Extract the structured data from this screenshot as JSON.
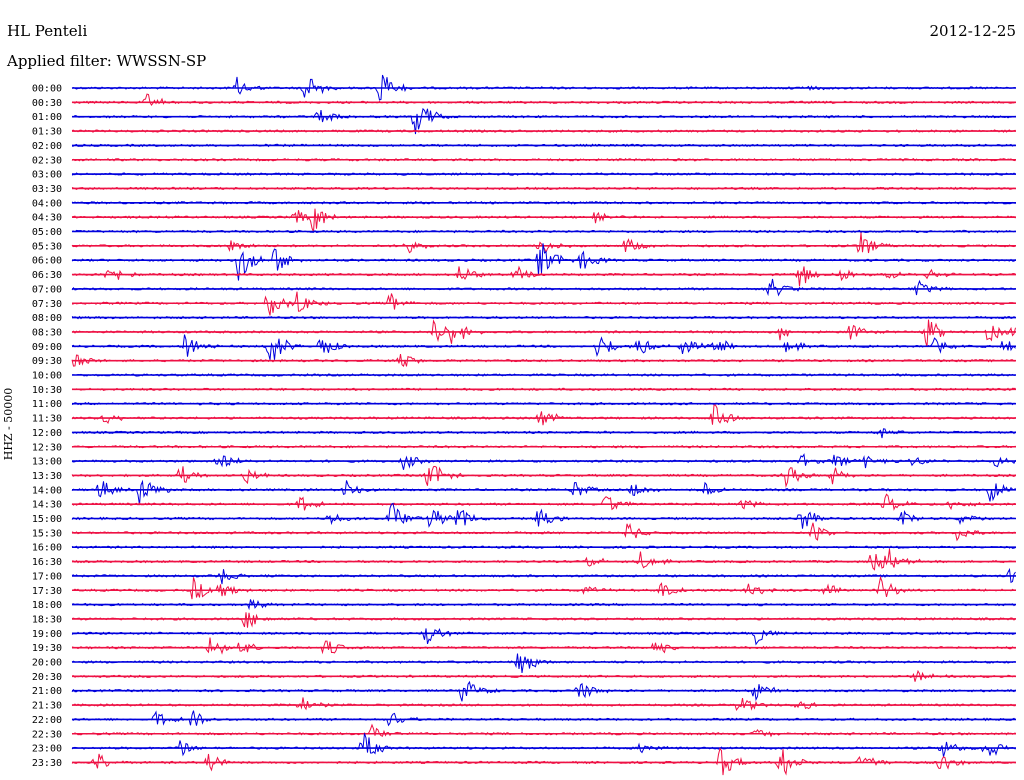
{
  "header": {
    "station": "HL Penteli",
    "date": "2012-12-25",
    "filter": "Applied filter: WWSSN-SP"
  },
  "chart_data": {
    "type": "line",
    "title": "HL Penteli",
    "subtitle": "Applied filter: WWSSN-SP",
    "date": "2012-12-25",
    "ylabel": "HHZ - 50000",
    "xlabel": "",
    "trace_colors": [
      "#0000dd",
      "#ee1144"
    ],
    "grid": false,
    "rows": [
      {
        "label": "00:00",
        "events": [
          [
            236,
            1.1
          ],
          [
            305,
            1.6
          ],
          [
            380,
            2.0
          ],
          [
            803,
            0.3
          ]
        ]
      },
      {
        "label": "00:30",
        "events": [
          [
            147,
            0.8
          ]
        ]
      },
      {
        "label": "01:00",
        "events": [
          [
            318,
            0.8
          ],
          [
            415,
            2.4
          ]
        ]
      },
      {
        "label": "01:30",
        "events": []
      },
      {
        "label": "02:00",
        "events": []
      },
      {
        "label": "02:30",
        "events": []
      },
      {
        "label": "03:00",
        "events": []
      },
      {
        "label": "03:30",
        "events": []
      },
      {
        "label": "04:00",
        "events": []
      },
      {
        "label": "04:30",
        "events": [
          [
            295,
            1.0
          ],
          [
            313,
            1.4
          ],
          [
            595,
            0.6
          ]
        ]
      },
      {
        "label": "05:00",
        "events": []
      },
      {
        "label": "05:30",
        "events": [
          [
            228,
            1.0
          ],
          [
            405,
            0.8
          ],
          [
            540,
            1.0
          ],
          [
            625,
            0.8
          ],
          [
            860,
            1.4
          ]
        ]
      },
      {
        "label": "06:00",
        "events": [
          [
            238,
            2.2
          ],
          [
            275,
            1.6
          ],
          [
            540,
            2.2
          ],
          [
            580,
            1.2
          ]
        ]
      },
      {
        "label": "06:30",
        "events": [
          [
            108,
            1.2
          ],
          [
            460,
            1.2
          ],
          [
            515,
            1.0
          ],
          [
            800,
            1.2
          ],
          [
            840,
            0.8
          ],
          [
            888,
            0.6
          ],
          [
            928,
            0.6
          ]
        ]
      },
      {
        "label": "07:00",
        "events": [
          [
            770,
            1.2
          ],
          [
            916,
            1.0
          ]
        ]
      },
      {
        "label": "07:30",
        "events": [
          [
            268,
            1.4
          ],
          [
            296,
            1.2
          ],
          [
            390,
            1.0
          ]
        ]
      },
      {
        "label": "08:00",
        "events": []
      },
      {
        "label": "08:30",
        "events": [
          [
            435,
            1.6
          ],
          [
            452,
            1.2
          ],
          [
            780,
            0.8
          ],
          [
            850,
            0.8
          ],
          [
            925,
            1.6
          ],
          [
            988,
            1.0
          ],
          [
            1014,
            0.6
          ]
        ]
      },
      {
        "label": "09:00",
        "events": [
          [
            185,
            1.4
          ],
          [
            270,
            2.0
          ],
          [
            320,
            1.2
          ],
          [
            598,
            1.4
          ],
          [
            638,
            1.0
          ],
          [
            682,
            1.0
          ],
          [
            715,
            1.0
          ],
          [
            785,
            0.8
          ],
          [
            935,
            0.8
          ],
          [
            1003,
            0.8
          ]
        ]
      },
      {
        "label": "09:30",
        "events": [
          [
            75,
            0.8
          ],
          [
            400,
            0.8
          ]
        ]
      },
      {
        "label": "10:00",
        "events": []
      },
      {
        "label": "10:30",
        "events": []
      },
      {
        "label": "11:00",
        "events": []
      },
      {
        "label": "11:30",
        "events": [
          [
            105,
            0.6
          ],
          [
            540,
            1.0
          ],
          [
            714,
            1.8
          ]
        ]
      },
      {
        "label": "12:00",
        "events": [
          [
            878,
            0.6
          ]
        ]
      },
      {
        "label": "12:30",
        "events": []
      },
      {
        "label": "13:00",
        "events": [
          [
            218,
            1.0
          ],
          [
            403,
            0.8
          ],
          [
            800,
            0.8
          ],
          [
            835,
            0.8
          ],
          [
            865,
            0.6
          ],
          [
            912,
            0.6
          ],
          [
            995,
            0.6
          ]
        ]
      },
      {
        "label": "13:30",
        "events": [
          [
            180,
            1.0
          ],
          [
            245,
            0.8
          ],
          [
            428,
            1.8
          ],
          [
            785,
            1.2
          ],
          [
            832,
            1.0
          ]
        ]
      },
      {
        "label": "14:00",
        "events": [
          [
            98,
            1.2
          ],
          [
            140,
            1.6
          ],
          [
            345,
            1.0
          ],
          [
            573,
            1.0
          ],
          [
            632,
            0.8
          ],
          [
            705,
            0.8
          ],
          [
            990,
            1.2
          ]
        ]
      },
      {
        "label": "14:30",
        "events": [
          [
            300,
            0.8
          ],
          [
            605,
            1.0
          ],
          [
            742,
            0.6
          ],
          [
            885,
            1.0
          ],
          [
            950,
            0.6
          ]
        ]
      },
      {
        "label": "15:00",
        "events": [
          [
            328,
            0.8
          ],
          [
            390,
            1.8
          ],
          [
            430,
            1.6
          ],
          [
            458,
            1.2
          ],
          [
            538,
            1.0
          ],
          [
            800,
            1.4
          ],
          [
            900,
            1.0
          ],
          [
            960,
            0.6
          ]
        ]
      },
      {
        "label": "15:30",
        "events": [
          [
            628,
            1.0
          ],
          [
            812,
            1.0
          ],
          [
            955,
            0.8
          ]
        ]
      },
      {
        "label": "16:00",
        "events": []
      },
      {
        "label": "16:30",
        "events": [
          [
            588,
            0.6
          ],
          [
            640,
            1.0
          ],
          [
            872,
            1.2
          ],
          [
            888,
            1.4
          ]
        ]
      },
      {
        "label": "17:00",
        "events": [
          [
            222,
            0.8
          ],
          [
            1010,
            0.8
          ]
        ]
      },
      {
        "label": "17:30",
        "events": [
          [
            193,
            1.2
          ],
          [
            220,
            1.0
          ],
          [
            582,
            0.6
          ],
          [
            660,
            0.8
          ],
          [
            747,
            1.4
          ],
          [
            825,
            0.8
          ],
          [
            880,
            1.4
          ]
        ]
      },
      {
        "label": "18:00",
        "events": [
          [
            250,
            0.6
          ]
        ]
      },
      {
        "label": "18:30",
        "events": [
          [
            245,
            1.0
          ]
        ]
      },
      {
        "label": "19:00",
        "events": [
          [
            425,
            1.2
          ],
          [
            756,
            1.0
          ]
        ]
      },
      {
        "label": "19:30",
        "events": [
          [
            210,
            1.2
          ],
          [
            240,
            0.8
          ],
          [
            325,
            1.0
          ],
          [
            655,
            0.8
          ]
        ]
      },
      {
        "label": "20:00",
        "events": [
          [
            518,
            1.6
          ]
        ]
      },
      {
        "label": "20:30",
        "events": [
          [
            915,
            0.6
          ]
        ]
      },
      {
        "label": "21:00",
        "events": [
          [
            463,
            1.4
          ],
          [
            578,
            1.2
          ],
          [
            755,
            1.0
          ]
        ]
      },
      {
        "label": "21:30",
        "events": [
          [
            300,
            0.8
          ],
          [
            738,
            1.0
          ],
          [
            798,
            0.6
          ]
        ]
      },
      {
        "label": "22:00",
        "events": [
          [
            155,
            0.8
          ],
          [
            192,
            1.0
          ],
          [
            390,
            1.0
          ]
        ]
      },
      {
        "label": "22:30",
        "events": [
          [
            372,
            0.8
          ],
          [
            755,
            0.6
          ]
        ]
      },
      {
        "label": "23:00",
        "events": [
          [
            180,
            0.8
          ],
          [
            363,
            1.6
          ],
          [
            640,
            0.6
          ],
          [
            942,
            1.0
          ],
          [
            985,
            1.2
          ]
        ]
      },
      {
        "label": "23:30",
        "events": [
          [
            95,
            1.2
          ],
          [
            208,
            1.2
          ],
          [
            720,
            1.6
          ],
          [
            780,
            1.8
          ],
          [
            860,
            1.2
          ],
          [
            940,
            1.0
          ]
        ]
      }
    ]
  }
}
